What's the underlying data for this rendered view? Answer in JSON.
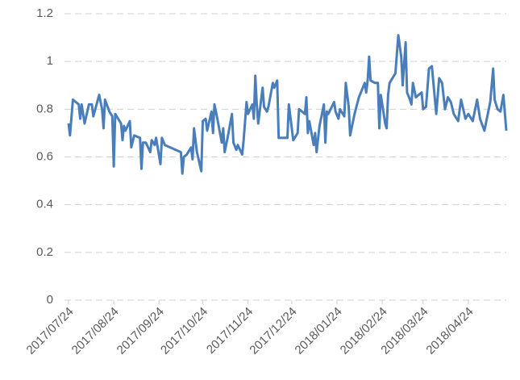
{
  "chart_data": {
    "type": "line",
    "x": [
      "2017/07/24",
      "2017/07/25",
      "2017/07/27",
      "2017/07/31",
      "2017/08/01",
      "2017/08/02",
      "2017/08/04",
      "2017/08/07",
      "2017/08/09",
      "2017/08/10",
      "2017/08/14",
      "2017/08/16",
      "2017/08/17",
      "2017/08/18",
      "2017/08/21",
      "2017/08/23",
      "2017/08/24",
      "2017/08/25",
      "2017/08/29",
      "2017/08/30",
      "2017/08/31",
      "2017/09/01",
      "2017/09/04",
      "2017/09/05",
      "2017/09/07",
      "2017/09/11",
      "2017/09/12",
      "2017/09/13",
      "2017/09/15",
      "2017/09/18",
      "2017/09/19",
      "2017/09/21",
      "2017/09/22",
      "2017/09/25",
      "2017/09/26",
      "2017/09/28",
      "2017/10/09",
      "2017/10/10",
      "2017/10/11",
      "2017/10/13",
      "2017/10/16",
      "2017/10/17",
      "2017/10/18",
      "2017/10/20",
      "2017/10/23",
      "2017/10/24",
      "2017/10/26",
      "2017/10/27",
      "2017/10/30",
      "2017/10/31",
      "2017/11/01",
      "2017/11/03",
      "2017/11/06",
      "2017/11/07",
      "2017/11/08",
      "2017/11/10",
      "2017/11/13",
      "2017/11/14",
      "2017/11/16",
      "2017/11/17",
      "2017/11/20",
      "2017/11/21",
      "2017/11/23",
      "2017/11/24",
      "2017/11/27",
      "2017/11/28",
      "2017/11/29",
      "2017/11/30",
      "2017/12/01",
      "2017/12/04",
      "2017/12/05",
      "2017/12/07",
      "2017/12/08",
      "2017/12/11",
      "2017/12/12",
      "2017/12/14",
      "2017/12/15",
      "2017/12/18",
      "2017/12/21",
      "2017/12/22",
      "2017/12/25",
      "2017/12/27",
      "2017/12/28",
      "2017/12/29",
      "2018/01/02",
      "2018/01/03",
      "2018/01/04",
      "2018/01/05",
      "2018/01/08",
      "2018/01/09",
      "2018/01/10",
      "2018/01/12",
      "2018/01/15",
      "2018/01/16",
      "2018/01/17",
      "2018/01/18",
      "2018/01/22",
      "2018/01/23",
      "2018/01/25",
      "2018/01/26",
      "2018/01/29",
      "2018/01/30",
      "2018/01/31",
      "2018/02/01",
      "2018/02/02",
      "2018/02/05",
      "2018/02/08",
      "2018/02/12",
      "2018/02/13",
      "2018/02/14",
      "2018/02/15",
      "2018/02/16",
      "2018/02/19",
      "2018/02/21",
      "2018/02/22",
      "2018/02/23",
      "2018/02/26",
      "2018/02/27",
      "2018/02/28",
      "2018/03/01",
      "2018/03/02",
      "2018/03/05",
      "2018/03/07",
      "2018/03/09",
      "2018/03/10",
      "2018/03/12",
      "2018/03/13",
      "2018/03/15",
      "2018/03/16",
      "2018/03/17",
      "2018/03/19",
      "2018/03/21",
      "2018/03/23",
      "2018/03/24",
      "2018/03/26",
      "2018/03/28",
      "2018/03/30",
      "2018/04/02",
      "2018/04/04",
      "2018/04/06",
      "2018/04/08",
      "2018/04/10",
      "2018/04/12",
      "2018/04/14",
      "2018/04/17",
      "2018/04/19",
      "2018/04/22",
      "2018/04/24",
      "2018/04/27",
      "2018/04/30",
      "2018/05/02",
      "2018/05/05",
      "2018/05/09",
      "2018/05/11",
      "2018/05/12",
      "2018/05/14",
      "2018/05/16",
      "2018/05/18",
      "2018/05/20"
    ],
    "series": [
      {
        "color": "#4a7ebb",
        "values": [
          0.74,
          0.69,
          0.84,
          0.82,
          0.76,
          0.82,
          0.74,
          0.82,
          0.82,
          0.77,
          0.86,
          0.8,
          0.72,
          0.84,
          0.79,
          0.77,
          0.56,
          0.78,
          0.74,
          0.67,
          0.73,
          0.71,
          0.75,
          0.64,
          0.69,
          0.68,
          0.55,
          0.66,
          0.66,
          0.62,
          0.67,
          0.65,
          0.68,
          0.57,
          0.68,
          0.65,
          0.62,
          0.53,
          0.6,
          0.61,
          0.64,
          0.59,
          0.72,
          0.62,
          0.54,
          0.75,
          0.76,
          0.71,
          0.79,
          0.7,
          0.82,
          0.76,
          0.66,
          0.72,
          0.62,
          0.68,
          0.78,
          0.66,
          0.63,
          0.65,
          0.61,
          0.67,
          0.83,
          0.78,
          0.82,
          0.76,
          0.94,
          0.82,
          0.74,
          0.89,
          0.81,
          0.79,
          0.81,
          0.91,
          0.89,
          0.92,
          0.68,
          0.68,
          0.68,
          0.82,
          0.67,
          0.69,
          0.7,
          0.8,
          0.78,
          0.85,
          0.7,
          0.75,
          0.65,
          0.7,
          0.62,
          0.73,
          0.82,
          0.66,
          0.79,
          0.78,
          0.83,
          0.79,
          0.76,
          0.8,
          0.77,
          0.91,
          0.86,
          0.81,
          0.69,
          0.78,
          0.85,
          0.91,
          0.87,
          0.92,
          1.02,
          0.92,
          0.91,
          0.91,
          0.72,
          0.86,
          0.74,
          0.72,
          0.86,
          0.91,
          0.92,
          0.95,
          1.11,
          1.02,
          0.9,
          1.08,
          0.87,
          0.84,
          0.82,
          0.91,
          0.85,
          0.86,
          0.87,
          0.8,
          0.81,
          0.97,
          0.98,
          0.78,
          0.93,
          0.91,
          0.8,
          0.85,
          0.83,
          0.78,
          0.75,
          0.84,
          0.76,
          0.78,
          0.75,
          0.84,
          0.76,
          0.71,
          0.83,
          0.97,
          0.84,
          0.8,
          0.79,
          0.86,
          0.71
        ]
      }
    ],
    "xlim": [
      "2017/07/24",
      "2018/05/20"
    ],
    "xticks": [
      "2017/07/24",
      "2017/08/24",
      "2017/09/24",
      "2017/10/24",
      "2017/11/24",
      "2017/12/24",
      "2018/01/24",
      "2018/02/24",
      "2018/03/24",
      "2018/04/24"
    ],
    "ylim": [
      0,
      1.2
    ],
    "yticks": [
      0,
      0.2,
      0.4,
      0.6,
      0.8,
      1,
      1.2
    ],
    "grid": true
  }
}
